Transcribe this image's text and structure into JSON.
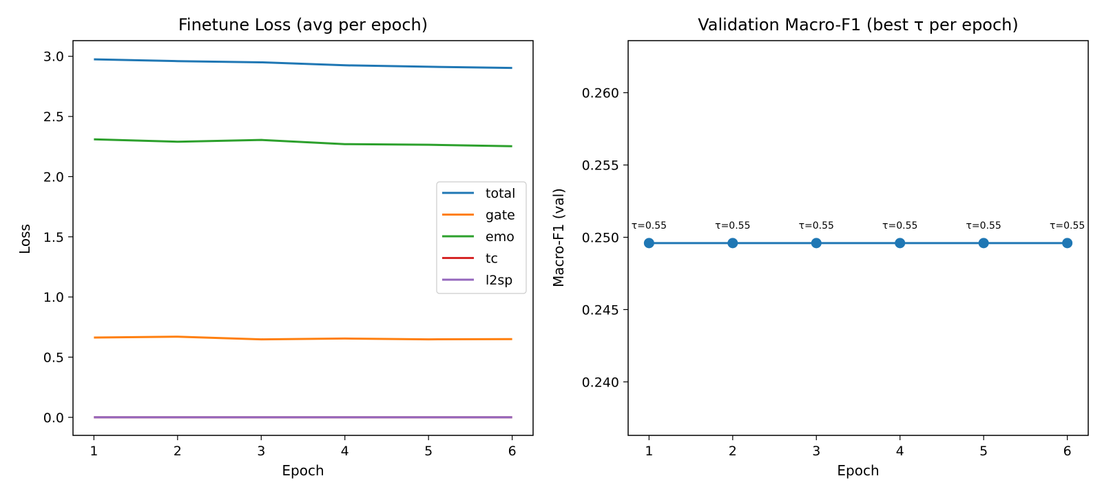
{
  "chart_data": [
    {
      "type": "line",
      "title": "Finetune Loss (avg per epoch)",
      "xlabel": "Epoch",
      "ylabel": "Loss",
      "x": [
        1,
        2,
        3,
        4,
        5,
        6
      ],
      "xlim": [
        0.75,
        6.25
      ],
      "ylim": [
        -0.15,
        3.13
      ],
      "xticks": [
        1,
        2,
        3,
        4,
        5,
        6
      ],
      "yticks": [
        0.0,
        0.5,
        1.0,
        1.5,
        2.0,
        2.5,
        3.0
      ],
      "ytick_labels": [
        "0.0",
        "0.5",
        "1.0",
        "1.5",
        "2.0",
        "2.5",
        "3.0"
      ],
      "grid": false,
      "legend": "center-right",
      "series": [
        {
          "name": "total",
          "color": "#1f77b4",
          "values": [
            2.975,
            2.96,
            2.95,
            2.925,
            2.913,
            2.903
          ]
        },
        {
          "name": "gate",
          "color": "#ff7f0e",
          "values": [
            0.663,
            0.67,
            0.648,
            0.655,
            0.648,
            0.65
          ]
        },
        {
          "name": "emo",
          "color": "#2ca02c",
          "values": [
            2.31,
            2.29,
            2.305,
            2.27,
            2.265,
            2.253
          ]
        },
        {
          "name": "tc",
          "color": "#d62728",
          "values": [
            0.0,
            0.0,
            0.0,
            0.0,
            0.0,
            0.0
          ]
        },
        {
          "name": "l2sp",
          "color": "#9467bd",
          "values": [
            0.0,
            0.0,
            0.0,
            0.0,
            0.0,
            0.0
          ]
        }
      ]
    },
    {
      "type": "line",
      "title": "Validation Macro-F1 (best τ per epoch)",
      "xlabel": "Epoch",
      "ylabel": "Macro-F1 (val)",
      "x": [
        1,
        2,
        3,
        4,
        5,
        6
      ],
      "xlim": [
        0.75,
        6.25
      ],
      "ylim": [
        0.2363,
        0.2636
      ],
      "xticks": [
        1,
        2,
        3,
        4,
        5,
        6
      ],
      "yticks": [
        0.24,
        0.245,
        0.25,
        0.255,
        0.26
      ],
      "ytick_labels": [
        "0.240",
        "0.245",
        "0.250",
        "0.255",
        "0.260"
      ],
      "grid": false,
      "markers": true,
      "series": [
        {
          "name": "",
          "color": "#1f77b4",
          "values": [
            0.2496,
            0.2496,
            0.2496,
            0.2496,
            0.2496,
            0.2496
          ]
        }
      ],
      "annotations": [
        "τ=0.55",
        "τ=0.55",
        "τ=0.55",
        "τ=0.55",
        "τ=0.55",
        "τ=0.55"
      ]
    }
  ]
}
